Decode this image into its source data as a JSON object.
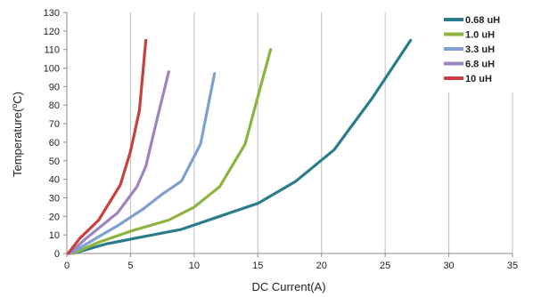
{
  "chart_data": {
    "type": "line",
    "title": "",
    "xlabel": "DC Current(A)",
    "ylabel_main": "Temperature(",
    "ylabel_sup": "o",
    "ylabel_end": "C)",
    "xlim": [
      0,
      35
    ],
    "ylim": [
      0,
      130
    ],
    "xticks": [
      0,
      5,
      10,
      15,
      20,
      25,
      30,
      35
    ],
    "yticks": [
      0,
      10,
      20,
      30,
      40,
      50,
      60,
      70,
      80,
      90,
      100,
      110,
      120,
      130
    ],
    "grid": {
      "vertical": true,
      "horizontal": false
    },
    "legend_position": "top-right",
    "series": [
      {
        "name": "0.68 uH",
        "color": "#2b7d8c",
        "x": [
          0.5,
          3,
          6,
          9,
          12,
          15,
          18,
          21,
          24,
          27
        ],
        "y": [
          0,
          5,
          9,
          13,
          20,
          27,
          39,
          56,
          84,
          115
        ]
      },
      {
        "name": "1.0 uH",
        "color": "#8db43e",
        "x": [
          0.5,
          2.5,
          5,
          8,
          10,
          12,
          14,
          16
        ],
        "y": [
          0,
          6,
          12,
          18,
          25,
          36,
          59,
          110
        ]
      },
      {
        "name": "3.3 uH",
        "color": "#7f9fd0",
        "x": [
          0.3,
          2,
          4,
          6,
          7.5,
          9,
          10.5,
          11.6
        ],
        "y": [
          0,
          7,
          15,
          24,
          32,
          39,
          59,
          97
        ]
      },
      {
        "name": "6.8 uH",
        "color": "#9c84bd",
        "x": [
          0.2,
          1.5,
          4,
          5.5,
          6.2,
          7,
          8
        ],
        "y": [
          0,
          8,
          22,
          36,
          47,
          70,
          98
        ]
      },
      {
        "name": "10 uH",
        "color": "#c8413e",
        "x": [
          0.1,
          1,
          2.5,
          4.2,
          5,
          5.7,
          6.2
        ],
        "y": [
          0,
          8,
          18,
          37,
          55,
          77,
          115
        ]
      }
    ]
  }
}
